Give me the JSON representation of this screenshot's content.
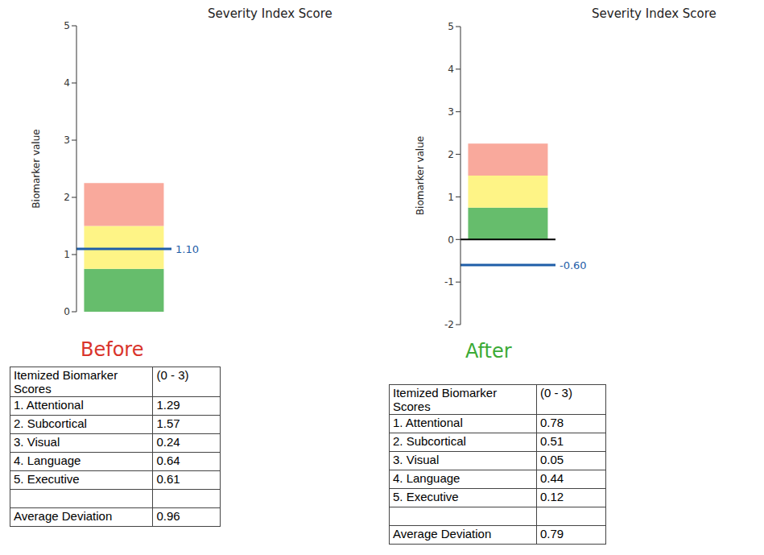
{
  "chart_data": [
    {
      "type": "bar",
      "stacked": true,
      "title": "Severity Index Score",
      "y_label": "Biomarker value",
      "categories": [
        null
      ],
      "series": [
        {
          "color": "#66bd6c",
          "values": [
            0.75
          ]
        },
        {
          "color": "#fef486",
          "values": [
            0.75
          ]
        },
        {
          "color": "#f9a99c",
          "values": [
            0.75
          ]
        }
      ],
      "ylim": [
        0,
        5
      ],
      "yticks": [
        0,
        1,
        2,
        3,
        4,
        5
      ],
      "tick_labels": "y",
      "reference_lines": [
        {
          "value": 1.1,
          "label": "1.10",
          "color": "#1f5ea8"
        }
      ]
    },
    {
      "type": "bar",
      "stacked": true,
      "title": "Severity Index Score",
      "y_label": "Biomarker value",
      "categories": [
        null
      ],
      "series": [
        {
          "color": "#66bd6c",
          "values": [
            0.75
          ]
        },
        {
          "color": "#fef486",
          "values": [
            0.75
          ]
        },
        {
          "color": "#f9a99c",
          "values": [
            0.75
          ]
        }
      ],
      "ylim": [
        -2,
        5
      ],
      "yticks": [
        -2,
        -1,
        0,
        1,
        2,
        3,
        4,
        5
      ],
      "tick_labels": "y",
      "reference_lines": [
        {
          "value": 0,
          "color": "#000000"
        },
        {
          "value": -0.6,
          "label": "-0.60",
          "color": "#1f5ea8"
        }
      ]
    }
  ],
  "panels": [
    {
      "caption": "Before",
      "caption_color": "#d9342b",
      "table": {
        "header": [
          "Itemized Biomarker Scores",
          "(0 - 3)"
        ],
        "rows": [
          [
            "1. Attentional",
            1.29
          ],
          [
            "2. Subcortical",
            1.57
          ],
          [
            "3. Visual",
            0.24
          ],
          [
            "4. Language",
            0.64
          ],
          [
            "5. Executive",
            0.61
          ]
        ],
        "summary": [
          "Average Deviation",
          0.96
        ]
      }
    },
    {
      "caption": "After",
      "caption_color": "#3aaa35",
      "table": {
        "header": [
          "Itemized Biomarker Scores",
          "(0 - 3)"
        ],
        "rows": [
          [
            "1. Attentional",
            0.78
          ],
          [
            "2. Subcortical",
            0.51
          ],
          [
            "3. Visual",
            0.05
          ],
          [
            "4. Language",
            0.44
          ],
          [
            "5. Executive",
            0.12
          ]
        ],
        "summary": [
          "Average Deviation",
          0.79
        ]
      }
    }
  ]
}
